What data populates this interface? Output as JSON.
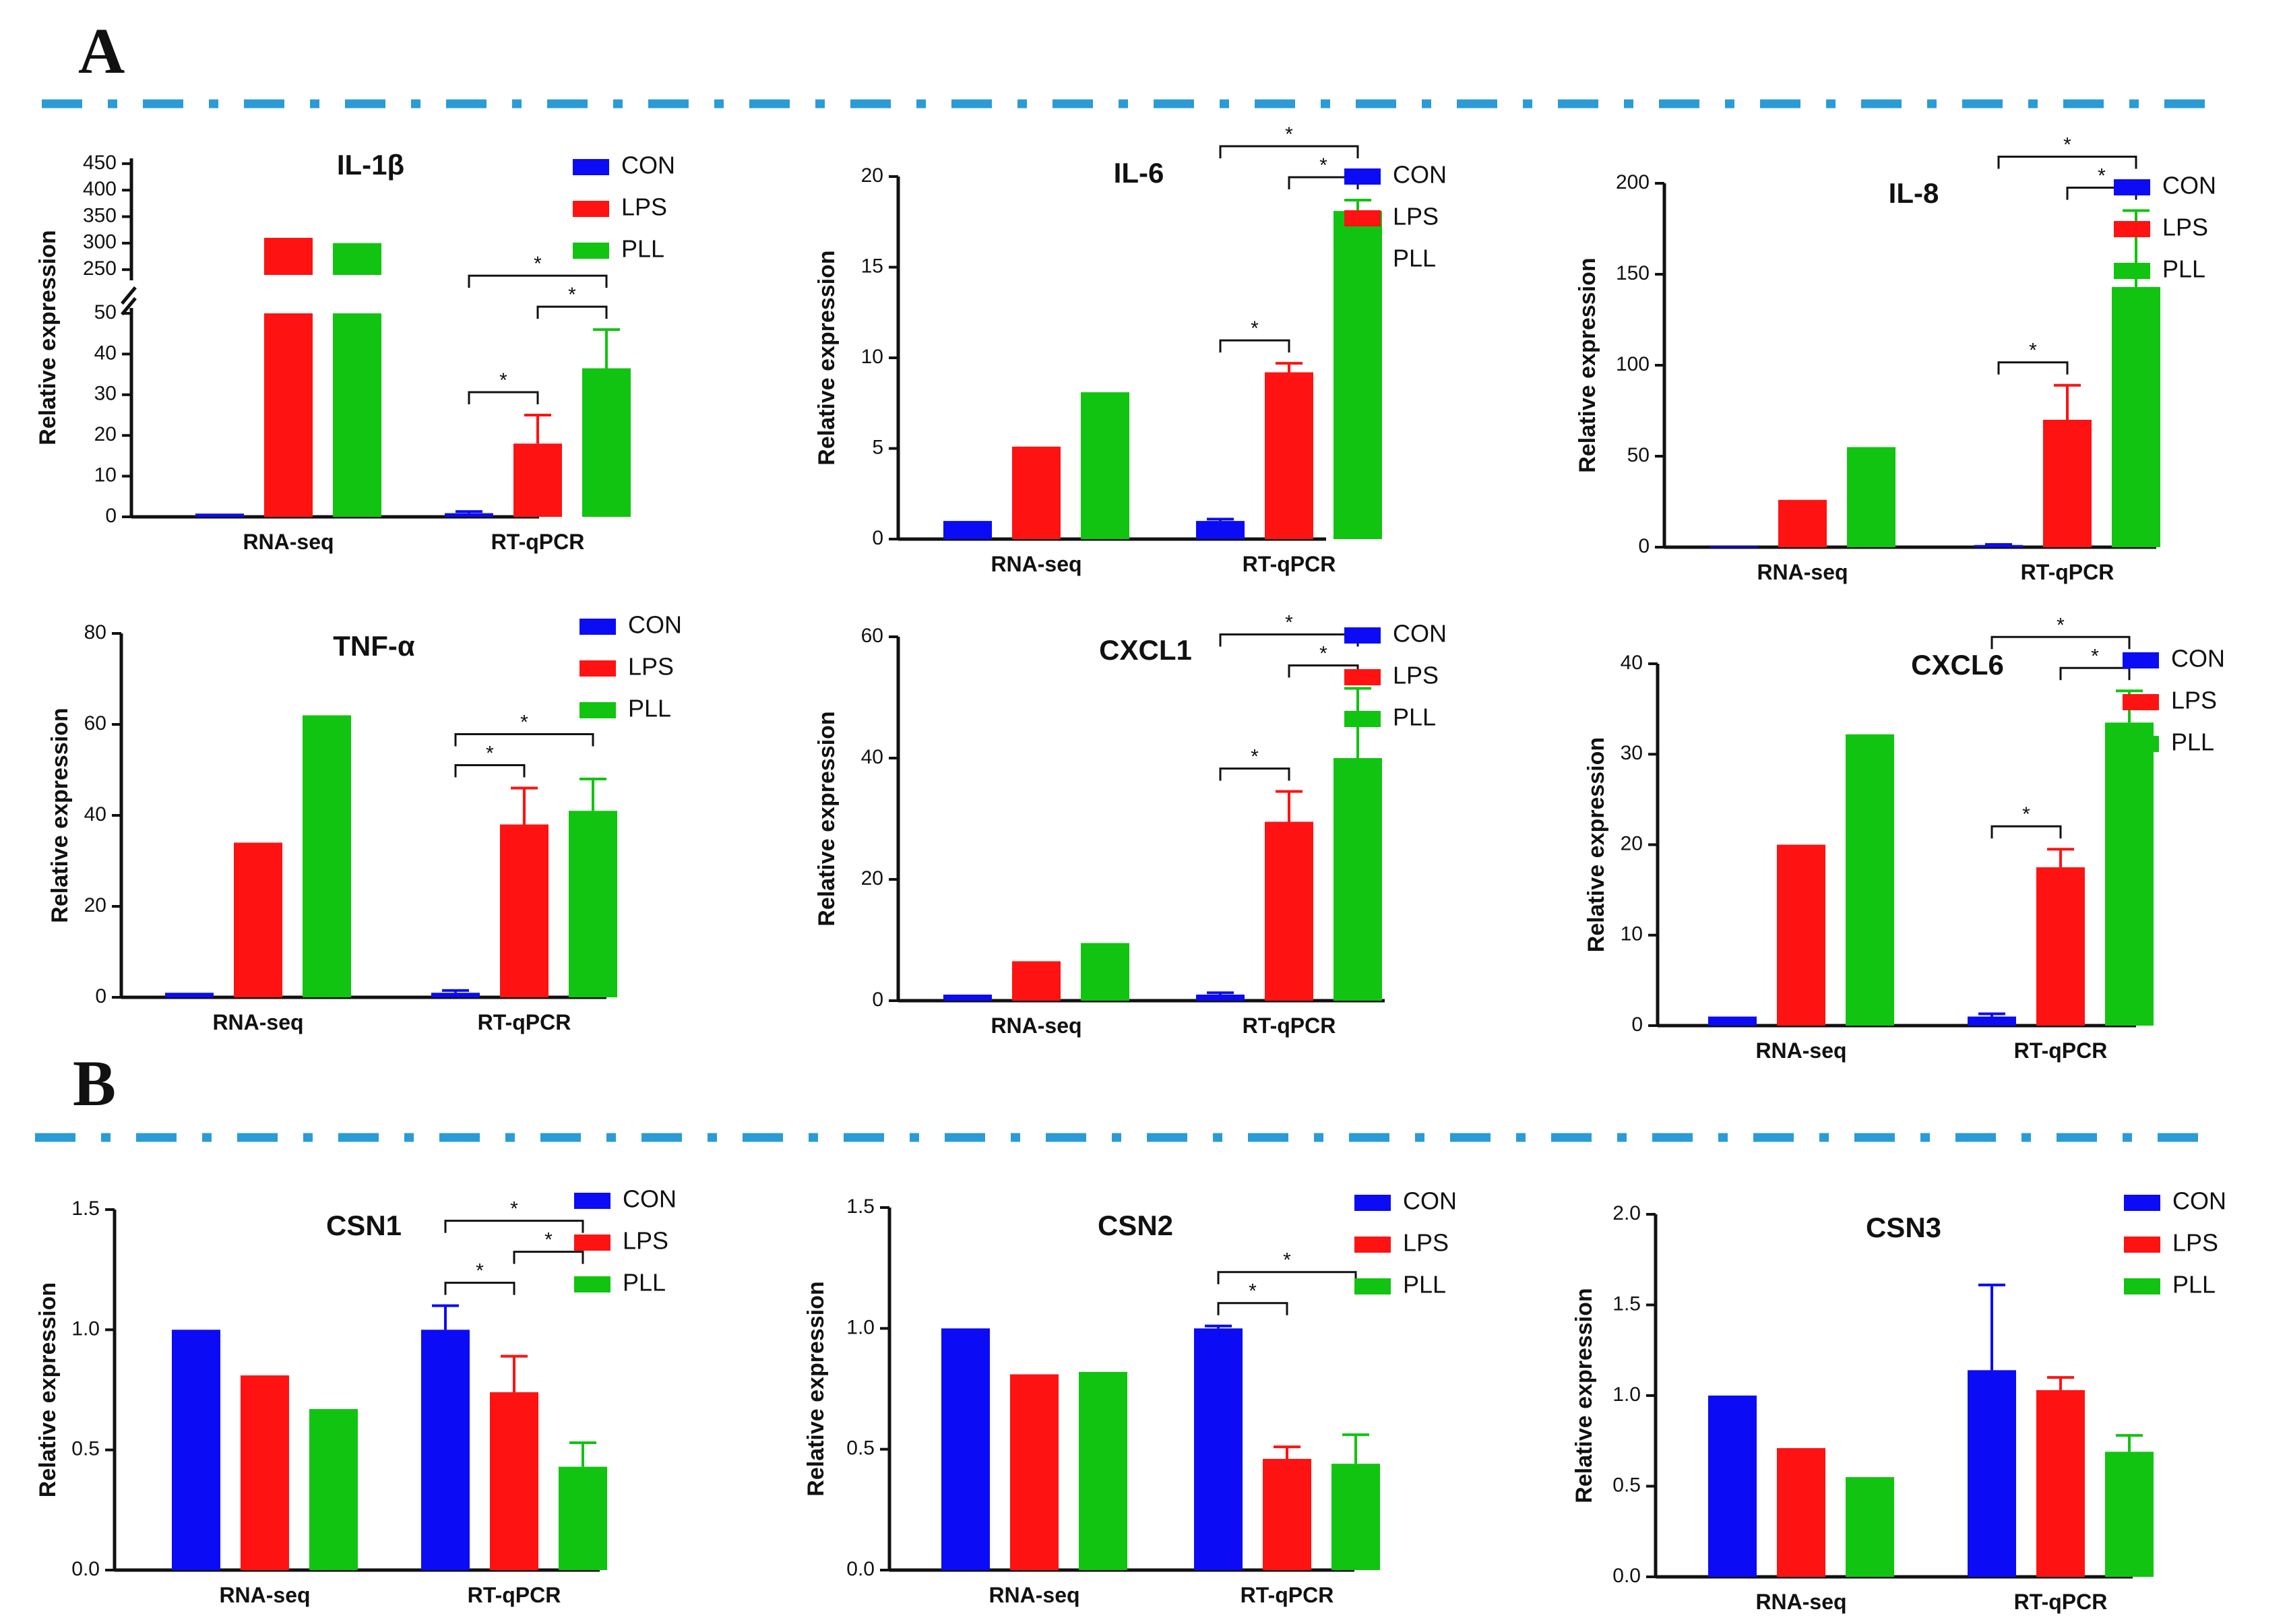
{
  "panel_labels": {
    "a": "A",
    "b": "B"
  },
  "colors": {
    "CON": "#0b0bf5",
    "LPS": "#ff1212",
    "PLL": "#11c411",
    "divider": "#2b9bd6",
    "axis": "#111111"
  },
  "legend": [
    "CON",
    "LPS",
    "PLL"
  ],
  "chart_data": [
    {
      "id": "il1b",
      "type": "bar",
      "title": "IL-1β",
      "ylabel": "Relative expression",
      "categories": [
        "RNA-seq",
        "RT-qPCR"
      ],
      "series": [
        {
          "name": "CON",
          "values": [
            0.8,
            0.9
          ],
          "errors": [
            null,
            0.4
          ]
        },
        {
          "name": "LPS",
          "values": [
            310,
            18
          ],
          "errors": [
            null,
            7
          ]
        },
        {
          "name": "PLL",
          "values": [
            300,
            36.5
          ],
          "errors": [
            null,
            9.5
          ]
        }
      ],
      "broken_axis": {
        "lower": [
          0,
          50
        ],
        "lower_ticks": [
          0,
          10,
          20,
          30,
          40,
          50
        ],
        "upper": [
          240,
          460
        ],
        "upper_ticks": [
          250,
          300,
          350,
          400,
          450
        ]
      },
      "significance": [
        {
          "cat": 1,
          "from": "CON",
          "to": "LPS",
          "label": "*"
        },
        {
          "cat": 1,
          "from": "LPS",
          "to": "PLL",
          "label": "*"
        },
        {
          "cat": 1,
          "from": "CON",
          "to": "PLL",
          "label": "*"
        }
      ]
    },
    {
      "id": "il6",
      "type": "bar",
      "title": "IL-6",
      "ylabel": "Relative expression",
      "categories": [
        "RNA-seq",
        "RT-qPCR"
      ],
      "series": [
        {
          "name": "CON",
          "values": [
            1.0,
            1.0
          ],
          "errors": [
            null,
            0.1
          ]
        },
        {
          "name": "LPS",
          "values": [
            5.1,
            9.2
          ],
          "errors": [
            null,
            0.5
          ]
        },
        {
          "name": "PLL",
          "values": [
            8.1,
            18.1
          ],
          "errors": [
            null,
            0.6
          ]
        }
      ],
      "ylim": [
        0,
        20
      ],
      "ticks": [
        0,
        5,
        10,
        15,
        20
      ],
      "significance": [
        {
          "cat": 1,
          "from": "CON",
          "to": "LPS",
          "label": "*"
        },
        {
          "cat": 1,
          "from": "LPS",
          "to": "PLL",
          "label": "*"
        },
        {
          "cat": 1,
          "from": "CON",
          "to": "PLL",
          "label": "*"
        }
      ]
    },
    {
      "id": "il8",
      "type": "bar",
      "title": "IL-8",
      "ylabel": "Relative expression",
      "categories": [
        "RNA-seq",
        "RT-qPCR"
      ],
      "series": [
        {
          "name": "CON",
          "values": [
            0.5,
            1.2
          ],
          "errors": [
            null,
            0.3
          ]
        },
        {
          "name": "LPS",
          "values": [
            26,
            70
          ],
          "errors": [
            null,
            19
          ]
        },
        {
          "name": "PLL",
          "values": [
            55,
            143
          ],
          "errors": [
            null,
            42
          ]
        }
      ],
      "ylim": [
        0,
        200
      ],
      "ticks": [
        0,
        50,
        100,
        150,
        200
      ],
      "significance": [
        {
          "cat": 1,
          "from": "CON",
          "to": "LPS",
          "label": "*"
        },
        {
          "cat": 1,
          "from": "LPS",
          "to": "PLL",
          "label": "*"
        },
        {
          "cat": 1,
          "from": "CON",
          "to": "PLL",
          "label": "*"
        }
      ]
    },
    {
      "id": "tnfa",
      "type": "bar",
      "title": "TNF-α",
      "ylabel": "Relative expression",
      "categories": [
        "RNA-seq",
        "RT-qPCR"
      ],
      "series": [
        {
          "name": "CON",
          "values": [
            1.0,
            1.0
          ],
          "errors": [
            null,
            0.5
          ]
        },
        {
          "name": "LPS",
          "values": [
            34,
            38
          ],
          "errors": [
            null,
            8
          ]
        },
        {
          "name": "PLL",
          "values": [
            62,
            41
          ],
          "errors": [
            null,
            7
          ]
        }
      ],
      "ylim": [
        0,
        80
      ],
      "ticks": [
        0,
        20,
        40,
        60,
        80
      ],
      "significance": [
        {
          "cat": 1,
          "from": "CON",
          "to": "LPS",
          "label": "*"
        },
        {
          "cat": 1,
          "from": "CON",
          "to": "PLL",
          "label": "*"
        }
      ]
    },
    {
      "id": "cxcl1",
      "type": "bar",
      "title": "CXCL1",
      "ylabel": "Relative expression",
      "categories": [
        "RNA-seq",
        "RT-qPCR"
      ],
      "series": [
        {
          "name": "CON",
          "values": [
            1.0,
            1.0
          ],
          "errors": [
            null,
            0.3
          ]
        },
        {
          "name": "LPS",
          "values": [
            6.5,
            29.5
          ],
          "errors": [
            null,
            5
          ]
        },
        {
          "name": "PLL",
          "values": [
            9.5,
            40
          ],
          "errors": [
            null,
            11.5
          ]
        }
      ],
      "ylim": [
        0,
        60
      ],
      "ticks": [
        0,
        20,
        40,
        60
      ],
      "significance": [
        {
          "cat": 1,
          "from": "CON",
          "to": "LPS",
          "label": "*"
        },
        {
          "cat": 1,
          "from": "LPS",
          "to": "PLL",
          "label": "*"
        },
        {
          "cat": 1,
          "from": "CON",
          "to": "PLL",
          "label": "*"
        }
      ]
    },
    {
      "id": "cxcl6",
      "type": "bar",
      "title": "CXCL6",
      "ylabel": "Relative expression",
      "categories": [
        "RNA-seq",
        "RT-qPCR"
      ],
      "series": [
        {
          "name": "CON",
          "values": [
            1.0,
            1.0
          ],
          "errors": [
            null,
            0.3
          ]
        },
        {
          "name": "LPS",
          "values": [
            20,
            17.5
          ],
          "errors": [
            null,
            2
          ]
        },
        {
          "name": "PLL",
          "values": [
            32.2,
            33.5
          ],
          "errors": [
            null,
            3.5
          ]
        }
      ],
      "ylim": [
        0,
        40
      ],
      "ticks": [
        0,
        10,
        20,
        30,
        40
      ],
      "significance": [
        {
          "cat": 1,
          "from": "CON",
          "to": "LPS",
          "label": "*"
        },
        {
          "cat": 1,
          "from": "LPS",
          "to": "PLL",
          "label": "*"
        },
        {
          "cat": 1,
          "from": "CON",
          "to": "PLL",
          "label": "*"
        }
      ]
    },
    {
      "id": "csn1",
      "type": "bar",
      "title": "CSN1",
      "ylabel": "Relative expression",
      "categories": [
        "RNA-seq",
        "RT-qPCR"
      ],
      "series": [
        {
          "name": "CON",
          "values": [
            1.0,
            1.0
          ],
          "errors": [
            null,
            0.1
          ]
        },
        {
          "name": "LPS",
          "values": [
            0.81,
            0.74
          ],
          "errors": [
            null,
            0.15
          ]
        },
        {
          "name": "PLL",
          "values": [
            0.67,
            0.43
          ],
          "errors": [
            null,
            0.1
          ]
        }
      ],
      "ylim": [
        0,
        1.5
      ],
      "ticks": [
        "0.0",
        "0.5",
        "1.0",
        "1.5"
      ],
      "significance": [
        {
          "cat": 1,
          "from": "CON",
          "to": "LPS",
          "label": "*"
        },
        {
          "cat": 1,
          "from": "CON",
          "to": "PLL",
          "label": "*"
        },
        {
          "cat": 1,
          "from": "LPS",
          "to": "PLL",
          "label": "*",
          "below": true
        }
      ]
    },
    {
      "id": "csn2",
      "type": "bar",
      "title": "CSN2",
      "ylabel": "Relative expression",
      "categories": [
        "RNA-seq",
        "RT-qPCR"
      ],
      "series": [
        {
          "name": "CON",
          "values": [
            1.0,
            1.0
          ],
          "errors": [
            null,
            0.01
          ]
        },
        {
          "name": "LPS",
          "values": [
            0.81,
            0.46
          ],
          "errors": [
            null,
            0.05
          ]
        },
        {
          "name": "PLL",
          "values": [
            0.82,
            0.44
          ],
          "errors": [
            null,
            0.12
          ]
        }
      ],
      "ylim": [
        0,
        1.5
      ],
      "ticks": [
        "0.0",
        "0.5",
        "1.0",
        "1.5"
      ],
      "significance": [
        {
          "cat": 1,
          "from": "CON",
          "to": "LPS",
          "label": "*"
        },
        {
          "cat": 1,
          "from": "CON",
          "to": "PLL",
          "label": "*"
        }
      ]
    },
    {
      "id": "csn3",
      "type": "bar",
      "title": "CSN3",
      "ylabel": "Relative expression",
      "categories": [
        "RNA-seq",
        "RT-qPCR"
      ],
      "series": [
        {
          "name": "CON",
          "values": [
            1.0,
            1.14
          ],
          "errors": [
            null,
            0.47
          ]
        },
        {
          "name": "LPS",
          "values": [
            0.71,
            1.03
          ],
          "errors": [
            null,
            0.07
          ]
        },
        {
          "name": "PLL",
          "values": [
            0.55,
            0.69
          ],
          "errors": [
            null,
            0.09
          ]
        }
      ],
      "ylim": [
        0,
        2.0
      ],
      "ticks": [
        "0.0",
        "0.5",
        "1.0",
        "1.5",
        "2.0"
      ],
      "significance": []
    }
  ]
}
